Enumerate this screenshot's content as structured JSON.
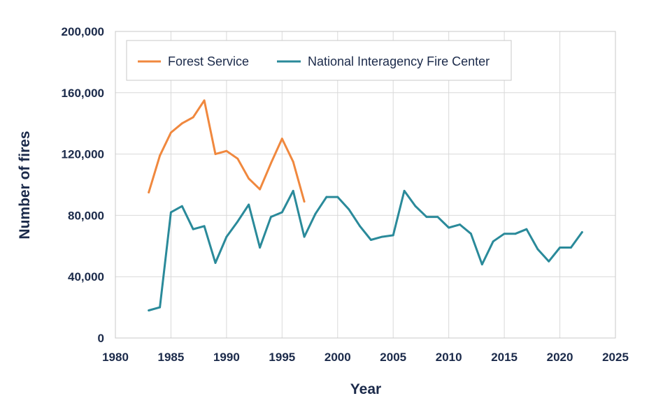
{
  "chart_data": {
    "type": "line",
    "title": "",
    "xlabel": "Year",
    "ylabel": "Number of fires",
    "xlim": [
      1980,
      2025
    ],
    "ylim": [
      0,
      200000
    ],
    "x_ticks": [
      1980,
      1985,
      1990,
      1995,
      2000,
      2005,
      2010,
      2015,
      2020,
      2025
    ],
    "x_tick_labels": [
      "1980",
      "1985",
      "1990",
      "1995",
      "2000",
      "2005",
      "2010",
      "2015",
      "2020",
      "2025"
    ],
    "y_ticks": [
      0,
      40000,
      80000,
      120000,
      160000,
      200000
    ],
    "y_tick_labels": [
      "0",
      "40,000",
      "80,000",
      "120,000",
      "160,000",
      "200,000"
    ],
    "grid": true,
    "legend_position": "top-left",
    "series": [
      {
        "name": "Forest Service",
        "color": "#f0883e",
        "x": [
          1983,
          1984,
          1985,
          1986,
          1987,
          1988,
          1989,
          1990,
          1991,
          1992,
          1993,
          1994,
          1995,
          1996,
          1997
        ],
        "values": [
          95000,
          119000,
          134000,
          140000,
          144000,
          155000,
          120000,
          122000,
          117000,
          104000,
          97000,
          114000,
          130000,
          115000,
          89000
        ]
      },
      {
        "name": "National Interagency Fire Center",
        "color": "#2a8a9a",
        "x": [
          1983,
          1984,
          1985,
          1986,
          1987,
          1988,
          1989,
          1990,
          1991,
          1992,
          1993,
          1994,
          1995,
          1996,
          1997,
          1998,
          1999,
          2000,
          2001,
          2002,
          2003,
          2004,
          2005,
          2006,
          2007,
          2008,
          2009,
          2010,
          2011,
          2012,
          2013,
          2014,
          2015,
          2016,
          2017,
          2018,
          2019,
          2020,
          2021,
          2022
        ],
        "values": [
          18000,
          20000,
          82000,
          86000,
          71000,
          73000,
          49000,
          66000,
          76000,
          87000,
          59000,
          79000,
          82000,
          96000,
          66000,
          81000,
          92000,
          92000,
          84000,
          73000,
          64000,
          66000,
          67000,
          96000,
          86000,
          79000,
          79000,
          72000,
          74000,
          68000,
          48000,
          63000,
          68000,
          68000,
          71000,
          58000,
          50000,
          59000,
          59000,
          69000
        ]
      }
    ]
  }
}
